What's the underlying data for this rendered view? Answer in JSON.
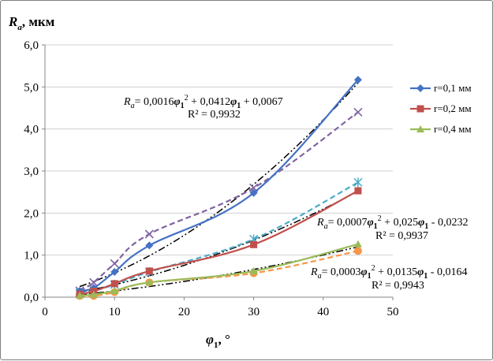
{
  "chart_data": {
    "type": "line",
    "title": "",
    "ylabel": {
      "symbol": "R",
      "sub": "a",
      "unit": ", мкм"
    },
    "xlabel": {
      "symbol": "φ",
      "sub": "1",
      "unit": ", °"
    },
    "xlim": [
      0,
      50
    ],
    "ylim": [
      0,
      6
    ],
    "xticks": [
      "0",
      "10",
      "20",
      "30",
      "40",
      "50"
    ],
    "yticks": [
      "0,0",
      "1,0",
      "2,0",
      "3,0",
      "4,0",
      "5,0",
      "6,0"
    ],
    "grid": "horizontal",
    "legend_position": "right",
    "colors": {
      "r01": "#4472c4",
      "r02": "#c0504d",
      "r04": "#9bbb59",
      "purple": "#8064a2",
      "cyan": "#4bacc6",
      "orange": "#f79646",
      "trend": "#000000",
      "grid": "#d0d0d0"
    },
    "series": [
      {
        "name": "r=0,1 мм",
        "key": "r01",
        "marker": "diamond",
        "x": [
          5,
          7,
          10,
          15,
          30,
          45
        ],
        "y": [
          0.15,
          0.22,
          0.6,
          1.23,
          2.48,
          5.17
        ]
      },
      {
        "name": "r=0,2 мм",
        "key": "r02",
        "marker": "square",
        "x": [
          5,
          7,
          10,
          15,
          30,
          45
        ],
        "y": [
          0.07,
          0.14,
          0.32,
          0.62,
          1.25,
          2.53
        ]
      },
      {
        "name": "r=0,4 мм",
        "key": "r04",
        "marker": "triangle",
        "x": [
          5,
          7,
          10,
          15,
          30,
          45
        ],
        "y": [
          0.04,
          0.06,
          0.15,
          0.35,
          0.62,
          1.26
        ]
      }
    ],
    "extra_series": [
      {
        "key": "purple",
        "marker": "x",
        "x": [
          5,
          7,
          10,
          15,
          30,
          45
        ],
        "y": [
          0.15,
          0.35,
          0.8,
          1.5,
          2.6,
          4.4
        ]
      },
      {
        "key": "cyan",
        "marker": "star",
        "x": [
          5,
          7,
          10,
          15,
          30,
          45
        ],
        "y": [
          0.1,
          0.15,
          0.3,
          0.6,
          1.38,
          2.73
        ]
      },
      {
        "key": "orange",
        "marker": "circle",
        "x": [
          5,
          7,
          10,
          15,
          30,
          45
        ],
        "y": [
          0.03,
          0.03,
          0.12,
          0.35,
          0.57,
          1.1
        ]
      }
    ],
    "trendlines": [
      {
        "a": 0.0016,
        "b": 0.0412,
        "c": 0.0067,
        "x": [
          5,
          45
        ]
      },
      {
        "a": 0.0007,
        "b": 0.025,
        "c": -0.0232,
        "x": [
          5,
          45
        ]
      },
      {
        "a": 0.0003,
        "b": 0.0135,
        "c": -0.0164,
        "x": [
          5,
          45
        ]
      }
    ],
    "annotations": [
      {
        "eq": {
          "ra": "R",
          "sub": "a",
          "c1": "= 0,0016",
          "phi": "φ",
          "phisub": "1",
          "sq": "2",
          "c2": " + 0,0412",
          "c3": " + 0,0067"
        },
        "r2": "R² = 0,9932"
      },
      {
        "eq": {
          "ra": "R",
          "sub": "a",
          "c1": "= 0,0007",
          "phi": "φ",
          "phisub": "1",
          "sq": "2",
          "c2": " + 0,025",
          "c3": " - 0,0232"
        },
        "r2": "R² = 0,9937"
      },
      {
        "eq": {
          "ra": "R",
          "sub": "a",
          "c1": "= 0,0003",
          "phi": "φ",
          "phisub": "1",
          "sq": "2",
          "c2": " + 0,0135",
          "c3": " - 0,0164"
        },
        "r2": "R² = 0,9943"
      }
    ]
  }
}
